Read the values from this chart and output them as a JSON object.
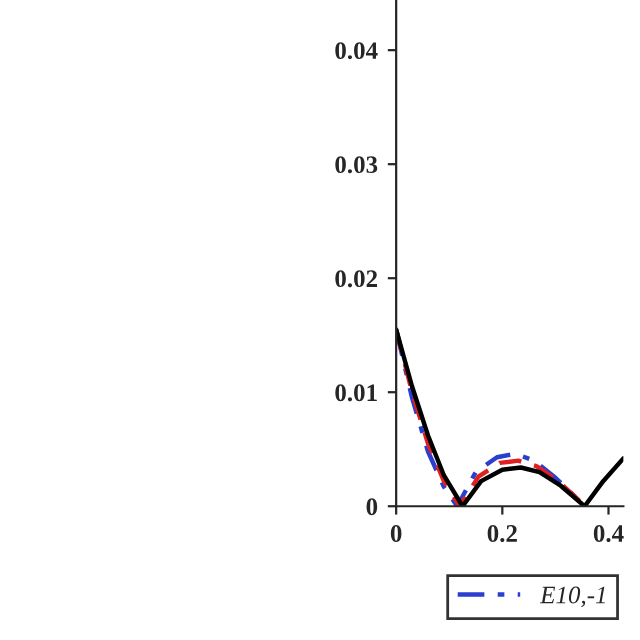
{
  "chart_data": {
    "type": "line",
    "x": [
      0,
      0.03,
      0.06,
      0.09,
      0.125,
      0.16,
      0.2,
      0.235,
      0.27,
      0.31,
      0.355,
      0.39,
      0.428
    ],
    "series": [
      {
        "name": "E10,-1",
        "color": "#2a3fd0",
        "line_style": "dashdot",
        "x": [
          0,
          0.03,
          0.06,
          0.09,
          0.115,
          0.15,
          0.19,
          0.225,
          0.26,
          0.3,
          0.34,
          0.355
        ],
        "values": [
          0.0155,
          0.0095,
          0.0048,
          0.0017,
          0,
          0.003,
          0.0043,
          0.0046,
          0.004,
          0.0025,
          0.0007,
          0
        ]
      },
      {
        "color": "#e02020",
        "line_style": "dashed",
        "x": [
          0,
          0.03,
          0.06,
          0.09,
          0.12,
          0.155,
          0.195,
          0.23,
          0.265,
          0.305,
          0.345,
          0.355
        ],
        "values": [
          0.0155,
          0.01,
          0.0055,
          0.0022,
          0,
          0.0026,
          0.0038,
          0.004,
          0.0035,
          0.0022,
          0.0005,
          0
        ]
      },
      {
        "color": "#000000",
        "line_style": "solid",
        "values": [
          0.0155,
          0.0105,
          0.0062,
          0.0027,
          0,
          0.0022,
          0.0032,
          0.0034,
          0.003,
          0.0018,
          0,
          0.0022,
          0.0042
        ]
      }
    ],
    "xlim": [
      0,
      0.428
    ],
    "ylim": [
      0,
      0.0444
    ],
    "xticks": [
      0,
      0.2,
      0.4
    ],
    "yticks": [
      0,
      0.01,
      0.02,
      0.03,
      0.04
    ],
    "grid": false,
    "legend": "bottom"
  }
}
